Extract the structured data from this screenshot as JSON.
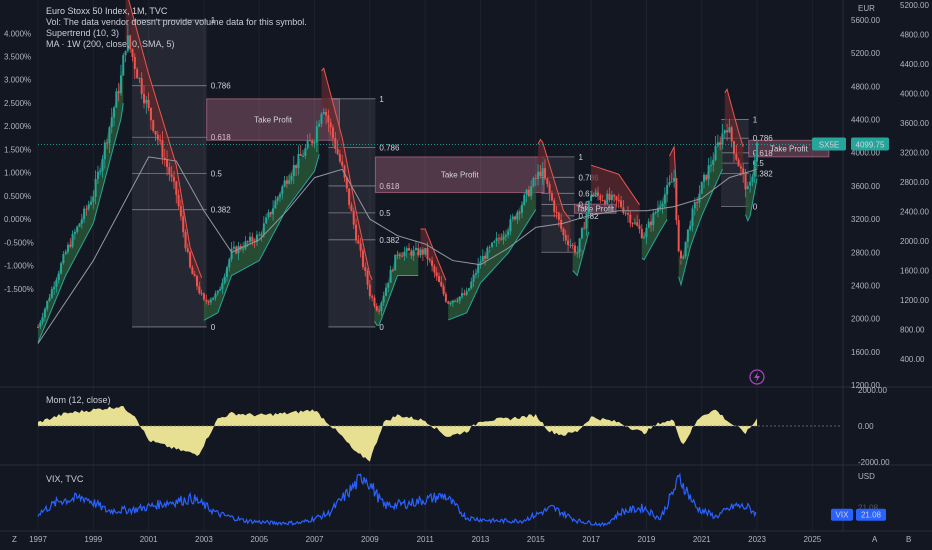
{
  "header": {
    "title": "Euro Stoxx 50 Index, 1M, TVC",
    "vol_note": "Vol: The data vendor doesn't provide volume data for this symbol.",
    "supertrend": "Supertrend (10, 3)",
    "ma": "MA · 1W (200, close, 0, SMA, 5)"
  },
  "panes": {
    "momentum_label": "Mom (12, close)",
    "vix_label": "VIX, TVC"
  },
  "currency": {
    "main": "EUR",
    "vix": "USD"
  },
  "badges": {
    "symbol": "SX5E",
    "price": "4099.75",
    "vix_symbol": "VIX",
    "vix_value": "21.08"
  },
  "colors": {
    "bull": "#26a69a",
    "bear": "#ef5350",
    "fill_up": "#2e5e3a",
    "fill_down": "#5e2a2e",
    "take_profit": "#f48fb1",
    "momentum": "#fff59d",
    "vix": "#2962ff",
    "ma": "#9598a1"
  },
  "chart_data": [
    {
      "type": "line",
      "pane": "price",
      "title": "Euro Stoxx 50 Index, 1M, TVC",
      "x": [
        1997.0,
        1998.0,
        1999.0,
        2000.0,
        2000.2,
        2001.0,
        2002.0,
        2002.5,
        2003.0,
        2003.5,
        2004.0,
        2005.0,
        2006.0,
        2007.0,
        2007.3,
        2008.0,
        2008.5,
        2009.0,
        2009.3,
        2010.0,
        2011.0,
        2011.8,
        2012.5,
        2013.0,
        2014.0,
        2015.2,
        2016.0,
        2016.5,
        2017.0,
        2018.0,
        2018.9,
        2019.5,
        2020.0,
        2020.2,
        2020.6,
        2021.0,
        2021.9,
        2022.3,
        2022.7,
        2023.0
      ],
      "y": [
        1900,
        2800,
        3500,
        4900,
        5400,
        4500,
        3500,
        2600,
        2200,
        2300,
        2800,
        3000,
        3700,
        4200,
        4600,
        3800,
        3000,
        2300,
        2100,
        2800,
        2800,
        2200,
        2300,
        2700,
        3100,
        3800,
        3000,
        2800,
        3500,
        3400,
        3000,
        3400,
        3700,
        2600,
        3200,
        3600,
        4350,
        3900,
        3500,
        4099.75
      ],
      "ylim": [
        1200,
        5600
      ],
      "xlim": [
        1997,
        2026
      ]
    },
    {
      "type": "line",
      "pane": "price",
      "series": [
        {
          "name": "MA · 1W (200, close, 0, SMA, 5)"
        }
      ],
      "x": [
        1997,
        1999,
        2001,
        2002,
        2003,
        2004,
        2005,
        2006,
        2007,
        2008,
        2009,
        2010,
        2011,
        2012,
        2013,
        2014,
        2015,
        2016,
        2017,
        2018,
        2019,
        2020,
        2021,
        2022,
        2023
      ],
      "y": [
        1700,
        2700,
        3950,
        3900,
        3300,
        2800,
        2950,
        3300,
        3700,
        3800,
        3200,
        3000,
        2900,
        2700,
        2650,
        2850,
        3100,
        3150,
        3250,
        3300,
        3300,
        3350,
        3450,
        3700,
        3800
      ]
    },
    {
      "type": "area",
      "pane": "momentum",
      "title": "Mom (12, close)",
      "x": [
        1997,
        1998,
        1999,
        2000,
        2000.5,
        2001,
        2002,
        2002.8,
        2003.5,
        2004,
        2005,
        2006,
        2007,
        2008,
        2008.5,
        2009,
        2009.5,
        2010,
        2011,
        2011.8,
        2012.5,
        2013,
        2014,
        2015,
        2015.5,
        2016,
        2016.5,
        2017,
        2018,
        2018.9,
        2019.5,
        2020,
        2020.3,
        2020.8,
        2021,
        2021.5,
        2022,
        2022.6,
        2023
      ],
      "y": [
        200,
        700,
        900,
        1100,
        600,
        -800,
        -1300,
        -1600,
        400,
        700,
        600,
        700,
        900,
        -600,
        -1500,
        -1900,
        200,
        600,
        300,
        -600,
        -300,
        300,
        400,
        600,
        -300,
        -500,
        -300,
        500,
        200,
        -400,
        200,
        300,
        -1100,
        200,
        600,
        900,
        200,
        -400,
        400
      ],
      "ylim": [
        -2000,
        2000
      ]
    },
    {
      "type": "line",
      "pane": "vix",
      "title": "VIX, TVC",
      "x": [
        1997,
        1997.8,
        1998.7,
        1999.5,
        2000.5,
        2001.7,
        2002.6,
        2003.5,
        2004.5,
        2005.5,
        2006.5,
        2007.5,
        2008.8,
        2009.5,
        2010.4,
        2011.7,
        2012.5,
        2013.5,
        2014.5,
        2015.6,
        2016.5,
        2017.5,
        2018.1,
        2018.9,
        2019.5,
        2020.2,
        2020.8,
        2021.5,
        2022.2,
        2022.7,
        2023
      ],
      "y": [
        22,
        35,
        38,
        25,
        26,
        33,
        37,
        22,
        15,
        13,
        13,
        22,
        60,
        30,
        32,
        40,
        18,
        15,
        15,
        28,
        15,
        11,
        24,
        28,
        17,
        57,
        28,
        19,
        30,
        28,
        21.08
      ],
      "ylim": [
        8,
        65
      ]
    }
  ],
  "axes": {
    "x_labels": [
      "1997",
      "1999",
      "2001",
      "2003",
      "2005",
      "2007",
      "2009",
      "2011",
      "2013",
      "2015",
      "2017",
      "2019",
      "2021",
      "2023",
      "2025"
    ],
    "price_labels": [
      "5600.00",
      "5200.00",
      "4800.00",
      "4400.00",
      "4000.00",
      "3600.00",
      "3200.00",
      "2800.00",
      "2400.00",
      "2000.00",
      "1600.00",
      "1200.00"
    ],
    "alt_labels": [
      "5200.00",
      "4800.00",
      "4400.00",
      "4000.00",
      "3600.00",
      "3200.00",
      "2800.00",
      "2400.00",
      "2000.00",
      "1600.00",
      "1200.00",
      "800.00",
      "400.00"
    ],
    "pct_labels": [
      "4.000%",
      "3.500%",
      "3.000%",
      "2.500%",
      "2.000%",
      "1.500%",
      "1.000%",
      "0.500%",
      "0.000%",
      "-0.500%",
      "-1.000%",
      "-1.500%"
    ],
    "mom_labels": [
      "2000.00",
      "0.00",
      "-2000.00"
    ],
    "vix_tick": "21.08",
    "corner_left": "Z",
    "corner_a": "A",
    "corner_b": "B"
  },
  "fib_sets": [
    {
      "name": "fib-2000",
      "from_year": 2000.4,
      "to_year": 2003.1,
      "top": 5600,
      "bottom": 1900
    },
    {
      "name": "fib-2007",
      "from_year": 2007.5,
      "to_year": 2009.2,
      "top": 4650,
      "bottom": 1900
    },
    {
      "name": "fib-2015",
      "from_year": 2015.2,
      "to_year": 2016.4,
      "top": 3950,
      "bottom": 2800
    },
    {
      "name": "fib-2021",
      "from_year": 2021.7,
      "to_year": 2022.7,
      "top": 4400,
      "bottom": 3350
    }
  ],
  "fib_labels": [
    "1",
    "0.786",
    "0.618",
    "0.5",
    "0.382",
    "0"
  ],
  "take_profit": {
    "label": "Take Profit",
    "zones": [
      {
        "from_year": 2003.1,
        "to_year": 2007.9,
        "top": 4650,
        "bottom": 4150
      },
      {
        "from_year": 2009.2,
        "to_year": 2015.3,
        "top": 3950,
        "bottom": 3520
      },
      {
        "from_year": 2016.4,
        "to_year": 2017.9,
        "top": 3380,
        "bottom": 3270
      },
      {
        "from_year": 2022.7,
        "to_year": 2025.6,
        "top": 4150,
        "bottom": 3950
      }
    ]
  }
}
